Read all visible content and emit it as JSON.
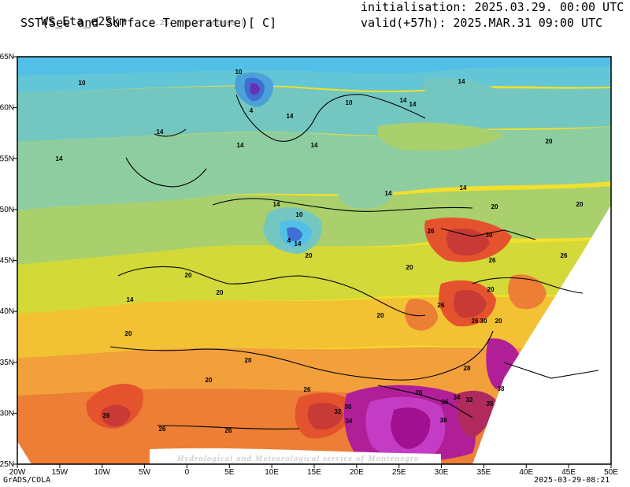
{
  "header": {
    "model": "WS_Eta_e25km",
    "resolution": "( 0.25 x 0.25 degree )",
    "variable": "SST(See and Surface Temperature)[ C]",
    "init": "initialisation: 2025.03.29. 00:00 UTC",
    "valid": "valid(+57h): 2025.MAR.31 09:00 UTC"
  },
  "footer": {
    "software": "GrADS/COLA",
    "timestamp": "2025-03-29-08:21"
  },
  "watermark": "Hydrological and Meteorological service of Montenegro",
  "axes": {
    "x_ticks": [
      "20W",
      "15W",
      "10W",
      "5W",
      "0",
      "5E",
      "10E",
      "15E",
      "20E",
      "25E",
      "30E",
      "35E",
      "40E",
      "45E",
      "50E"
    ],
    "y_ticks": [
      "65N",
      "60N",
      "55N",
      "50N",
      "45N",
      "40N",
      "35N",
      "30N",
      "25N"
    ]
  },
  "colors": {
    "t2": "#6a2fb0",
    "t4": "#3f6fd0",
    "t6": "#4aa2d8",
    "t8": "#52c0e6",
    "t10": "#63c6d6",
    "t12": "#74c7c0",
    "t14": "#8ecda0",
    "t16": "#a9d06c",
    "t18": "#d2d938",
    "t20": "#f2e02c",
    "t22": "#f3c134",
    "t24": "#f2a03b",
    "t26": "#ec7e35",
    "t28": "#e4532d",
    "t30": "#c83a36",
    "t32": "#b02a5e",
    "t34": "#b01f98",
    "t36": "#c43cc4",
    "t38": "#a01090"
  },
  "contour_labels": [
    {
      "text": "10"
    },
    {
      "text": "10"
    },
    {
      "text": "10"
    },
    {
      "text": "4"
    },
    {
      "text": "14"
    },
    {
      "text": "14"
    },
    {
      "text": "14"
    },
    {
      "text": "14"
    },
    {
      "text": "14"
    },
    {
      "text": "20"
    },
    {
      "text": "20"
    },
    {
      "text": "14"
    },
    {
      "text": "10"
    },
    {
      "text": "4"
    },
    {
      "text": "14"
    },
    {
      "text": "20"
    },
    {
      "text": "20"
    },
    {
      "text": "20"
    },
    {
      "text": "14"
    },
    {
      "text": "20"
    },
    {
      "text": "26"
    },
    {
      "text": "30"
    },
    {
      "text": "26"
    },
    {
      "text": "26"
    },
    {
      "text": "20"
    },
    {
      "text": "26"
    },
    {
      "text": "30"
    },
    {
      "text": "20"
    },
    {
      "text": "20"
    },
    {
      "text": "26"
    },
    {
      "text": "20"
    },
    {
      "text": "20"
    },
    {
      "text": "20"
    },
    {
      "text": "26"
    },
    {
      "text": "28"
    },
    {
      "text": "26"
    },
    {
      "text": "30"
    },
    {
      "text": "32"
    },
    {
      "text": "34"
    },
    {
      "text": "38"
    },
    {
      "text": "34"
    },
    {
      "text": "36"
    },
    {
      "text": "32"
    },
    {
      "text": "35"
    },
    {
      "text": "38"
    },
    {
      "text": "26"
    },
    {
      "text": "26"
    },
    {
      "text": "26"
    },
    {
      "text": "14"
    },
    {
      "text": "14"
    },
    {
      "text": "14"
    },
    {
      "text": "14"
    },
    {
      "text": "14"
    },
    {
      "text": "20"
    }
  ]
}
